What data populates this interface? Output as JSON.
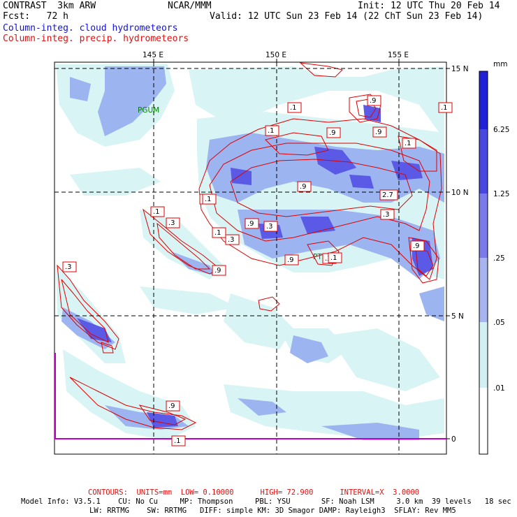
{
  "header": {
    "model": "CONTRAST  3km ARW",
    "org": "NCAR/MMM",
    "init": "Init: 12 UTC Thu 20 Feb 14",
    "fcst": "Fcst:   72 h",
    "valid": "Valid: 12 UTC Sun 23 Feb 14 (22 ChT Sun 23 Feb 14)",
    "field1": "Column-integ. cloud hydrometeors",
    "field2": "Column-integ. precip. hydrometeors"
  },
  "map": {
    "lon_labels": [
      "145 E",
      "150 E",
      "155 E"
    ],
    "lat_labels": [
      "15 N",
      "10 N",
      "5 N",
      "0"
    ],
    "stations": [
      "PGUM",
      "PTKK"
    ],
    "contour_labels": [
      ".1",
      ".9",
      ".1",
      ".1",
      ".9",
      ".9",
      ".1",
      ".1",
      ".9",
      ".3",
      ".9",
      ".1",
      ".1",
      ".3",
      ".3",
      ".1",
      ".9",
      ".3",
      ".9",
      ".3",
      ".3",
      ".9",
      ".1",
      "2.7",
      ".1",
      ".9"
    ],
    "colors": {
      "cloud_light": "#d8f4f4",
      "cloud_mid": "#9cb4f0",
      "cloud_dark": "#5a5ae6",
      "precip": "#e00000",
      "grid": "#000000",
      "equator": "#c000c0"
    }
  },
  "colorbar": {
    "unit": "mm",
    "labels": [
      "6.25",
      "1.25",
      ".25",
      ".05",
      ".01"
    ],
    "colors": [
      "#2020d8",
      "#4848e0",
      "#7a7aea",
      "#a8b4f0",
      "#d2f0f4",
      "#ffffff"
    ]
  },
  "footer": {
    "contours": "CONTOURS:  UNITS=mm  LOW= 0.10000      HIGH= 72.900      INTERVAL=X  3.0000",
    "model_info_1": "Model Info: V3.5.1    CU: No Cu     MP: Thompson     PBL: YSU       SF: Noah LSM     3.0 km  39 levels   18 sec",
    "model_info_2": "LW: RRTMG    SW: RRTMG   DIFF: simple KM: 3D Smagor DAMP: Rayleigh3  SFLAY: Rev MM5"
  }
}
